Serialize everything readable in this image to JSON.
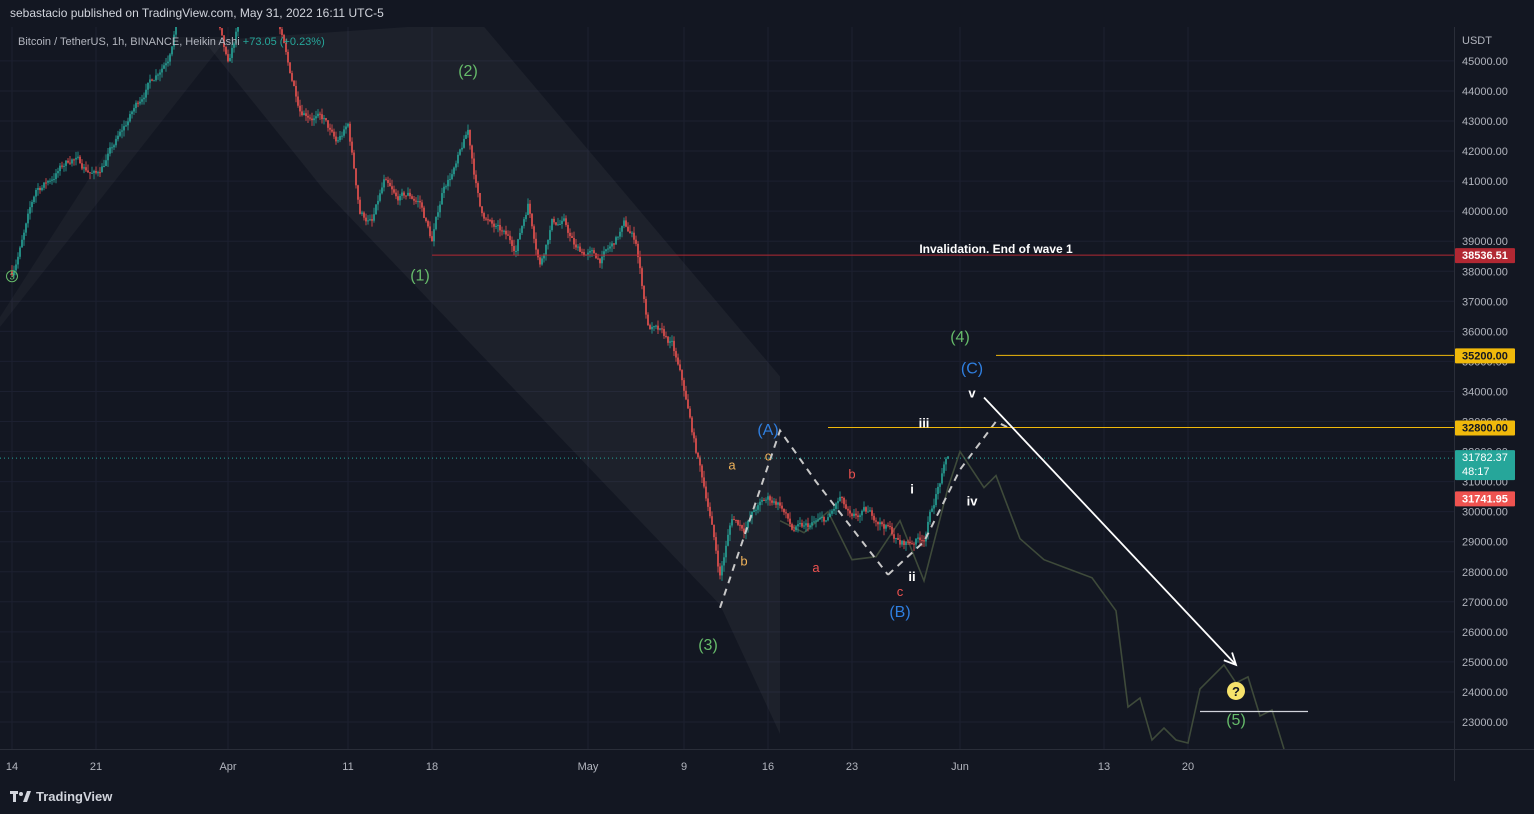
{
  "header": {
    "publisher_text": "sebastacio published on TradingView.com, May 31, 2022 16:11 UTC-5"
  },
  "symbol": {
    "name": "Bitcoin / TetherUS, 1h, BINANCE, Heikin Ashi",
    "change": "+73.05 (+0.23%)"
  },
  "footer": {
    "logo_text": "TradingView"
  },
  "colors": {
    "background": "#131722",
    "up": "#26a69a",
    "down": "#ef5350",
    "green_label": "#66bb6a",
    "blue_label": "#2f7fe0",
    "orange_label": "#f0b35a",
    "red_label": "#ef5350",
    "yellow_line": "#f0b90b",
    "red_line": "#b22833"
  },
  "chart_data": {
    "type": "candlestick",
    "price_axis_unit": "USDT",
    "y_ticks": [
      23000,
      24000,
      25000,
      26000,
      27000,
      28000,
      29000,
      30000,
      31000,
      32000,
      33000,
      34000,
      35000,
      36000,
      37000,
      38000,
      39000,
      40000,
      41000,
      42000,
      43000,
      44000,
      45000
    ],
    "ylim": [
      22250,
      46000
    ],
    "x_axis_labels": [
      {
        "label": "14",
        "date": "2022-03-14"
      },
      {
        "label": "21",
        "date": "2022-03-21"
      },
      {
        "label": "Apr",
        "date": "2022-04-01"
      },
      {
        "label": "11",
        "date": "2022-04-11"
      },
      {
        "label": "18",
        "date": "2022-04-18"
      },
      {
        "label": "May",
        "date": "2022-05-01"
      },
      {
        "label": "9",
        "date": "2022-05-09"
      },
      {
        "label": "16",
        "date": "2022-05-16"
      },
      {
        "label": "23",
        "date": "2022-05-23"
      },
      {
        "label": "Jun",
        "date": "2022-06-01"
      },
      {
        "label": "13",
        "date": "2022-06-13"
      },
      {
        "label": "20",
        "date": "2022-06-20"
      }
    ],
    "price_path": [
      [
        "2022-03-14",
        38000
      ],
      [
        "2022-03-15",
        39200
      ],
      [
        "2022-03-16",
        40700
      ],
      [
        "2022-03-17",
        41000
      ],
      [
        "2022-03-19",
        41800
      ],
      [
        "2022-03-21",
        41200
      ],
      [
        "2022-03-23",
        42500
      ],
      [
        "2022-03-25",
        44000
      ],
      [
        "2022-03-27",
        45200
      ],
      [
        "2022-03-28",
        46900
      ],
      [
        "2022-03-30",
        47300
      ],
      [
        "2022-03-31",
        46500
      ],
      [
        "2022-04-01",
        44700
      ],
      [
        "2022-04-02",
        46400
      ],
      [
        "2022-04-04",
        46300
      ],
      [
        "2022-04-05",
        46700
      ],
      [
        "2022-04-06",
        44800
      ],
      [
        "2022-04-07",
        43500
      ],
      [
        "2022-04-09",
        43000
      ],
      [
        "2022-04-10",
        42200
      ],
      [
        "2022-04-11",
        42800
      ],
      [
        "2022-04-12",
        40000
      ],
      [
        "2022-04-13",
        39600
      ],
      [
        "2022-04-14",
        40900
      ],
      [
        "2022-04-15",
        40300
      ],
      [
        "2022-04-16",
        40500
      ],
      [
        "2022-04-17",
        40300
      ],
      [
        "2022-04-18",
        39000
      ],
      [
        "2022-04-19",
        40900
      ],
      [
        "2022-04-20",
        41500
      ],
      [
        "2022-04-21",
        42600
      ],
      [
        "2022-04-22",
        40100
      ],
      [
        "2022-04-23",
        39500
      ],
      [
        "2022-04-25",
        38800
      ],
      [
        "2022-04-26",
        40300
      ],
      [
        "2022-04-27",
        38300
      ],
      [
        "2022-04-28",
        39700
      ],
      [
        "2022-04-29",
        39600
      ],
      [
        "2022-04-30",
        38700
      ],
      [
        "2022-05-01",
        38600
      ],
      [
        "2022-05-02",
        38400
      ],
      [
        "2022-05-03",
        38800
      ],
      [
        "2022-05-04",
        39500
      ],
      [
        "2022-05-05",
        39000
      ],
      [
        "2022-05-06",
        36200
      ],
      [
        "2022-05-07",
        35900
      ],
      [
        "2022-05-08",
        35500
      ],
      [
        "2022-05-09",
        34000
      ],
      [
        "2022-05-10",
        32000
      ],
      [
        "2022-05-11",
        30300
      ],
      [
        "2022-05-12",
        27900
      ],
      [
        "2022-05-13",
        29800
      ],
      [
        "2022-05-14",
        29500
      ],
      [
        "2022-05-15",
        30100
      ],
      [
        "2022-05-16",
        30400
      ],
      [
        "2022-05-17",
        30300
      ],
      [
        "2022-05-18",
        29400
      ],
      [
        "2022-05-19",
        29400
      ],
      [
        "2022-05-20",
        29600
      ],
      [
        "2022-05-21",
        29700
      ],
      [
        "2022-05-22",
        30400
      ],
      [
        "2022-05-23",
        29600
      ],
      [
        "2022-05-24",
        29900
      ],
      [
        "2022-05-25",
        29800
      ],
      [
        "2022-05-26",
        29500
      ],
      [
        "2022-05-27",
        28900
      ],
      [
        "2022-05-28",
        29000
      ],
      [
        "2022-05-29",
        29200
      ],
      [
        "2022-05-30",
        30600
      ],
      [
        "2022-05-31",
        31782
      ]
    ],
    "projection_path": [
      [
        "2022-05-17",
        29700
      ],
      [
        "2022-05-19",
        29300
      ],
      [
        "2022-05-21",
        30000
      ],
      [
        "2022-05-23",
        28400
      ],
      [
        "2022-05-25",
        28500
      ],
      [
        "2022-05-27",
        29700
      ],
      [
        "2022-05-29",
        27700
      ],
      [
        "2022-05-31",
        30800
      ],
      [
        "2022-06-01",
        32000
      ],
      [
        "2022-06-03",
        30800
      ],
      [
        "2022-06-04",
        31200
      ],
      [
        "2022-06-06",
        29100
      ],
      [
        "2022-06-08",
        28400
      ],
      [
        "2022-06-10",
        28100
      ],
      [
        "2022-06-12",
        27800
      ],
      [
        "2022-06-14",
        26700
      ],
      [
        "2022-06-15",
        23500
      ],
      [
        "2022-06-16",
        23800
      ],
      [
        "2022-06-17",
        22400
      ],
      [
        "2022-06-18",
        22800
      ],
      [
        "2022-06-19",
        22400
      ],
      [
        "2022-06-20",
        22300
      ],
      [
        "2022-06-21",
        24100
      ],
      [
        "2022-06-22",
        24500
      ],
      [
        "2022-06-23",
        24900
      ],
      [
        "2022-06-24",
        24300
      ],
      [
        "2022-06-25",
        24500
      ],
      [
        "2022-06-26",
        23200
      ],
      [
        "2022-06-27",
        23400
      ],
      [
        "2022-06-28",
        22100
      ]
    ],
    "horizontal_levels": [
      {
        "price": 38536.51,
        "label": "38536.51",
        "note": "Invalidation. End of wave 1",
        "style": "red"
      },
      {
        "price": 35200,
        "label": "35200.00",
        "style": "yellow"
      },
      {
        "price": 32800,
        "label": "32800.00",
        "style": "yellow"
      },
      {
        "price": 23350,
        "style": "white"
      }
    ],
    "price_badges": [
      {
        "price": 31782.37,
        "label": "31782.37",
        "sublabel": "48:17",
        "color": "#26a69a"
      },
      {
        "price": 31741.95,
        "label": "31741.95",
        "color": "#ef5350"
      }
    ],
    "wave_labels": [
      {
        "text": "(1)",
        "date": "2022-04-17",
        "price": 37700,
        "color": "green"
      },
      {
        "text": "(2)",
        "date": "2022-04-21",
        "price": 44500,
        "color": "green"
      },
      {
        "text": "(3)",
        "date": "2022-05-11",
        "price": 25400,
        "color": "green"
      },
      {
        "text": "(4)",
        "date": "2022-06-01",
        "price": 35650,
        "color": "green"
      },
      {
        "text": "(5)",
        "date": "2022-06-24",
        "price": 22900,
        "color": "green"
      },
      {
        "text": "(A)",
        "date": "2022-05-16",
        "price": 32550,
        "color": "blue"
      },
      {
        "text": "(B)",
        "date": "2022-05-27",
        "price": 26500,
        "color": "blue"
      },
      {
        "text": "(C)",
        "date": "2022-06-02",
        "price": 34600,
        "color": "blue"
      },
      {
        "text": "a",
        "date": "2022-05-13",
        "price": 31400,
        "color": "orange"
      },
      {
        "text": "b",
        "date": "2022-05-14",
        "price": 28200,
        "color": "orange"
      },
      {
        "text": "c",
        "date": "2022-05-16",
        "price": 31700,
        "color": "orange"
      },
      {
        "text": "a",
        "date": "2022-05-20",
        "price": 28000,
        "color": "red"
      },
      {
        "text": "b",
        "date": "2022-05-23",
        "price": 31100,
        "color": "red"
      },
      {
        "text": "c",
        "date": "2022-05-27",
        "price": 27200,
        "color": "red"
      },
      {
        "text": "i",
        "date": "2022-05-28",
        "price": 30600,
        "color": "white"
      },
      {
        "text": "ii",
        "date": "2022-05-28",
        "price": 27700,
        "color": "white"
      },
      {
        "text": "iii",
        "date": "2022-05-29",
        "price": 32800,
        "color": "white"
      },
      {
        "text": "iv",
        "date": "2022-06-02",
        "price": 30200,
        "color": "white"
      },
      {
        "text": "v",
        "date": "2022-06-02",
        "price": 33800,
        "color": "white"
      }
    ],
    "edge_marker": {
      "text": "3",
      "price": 37700
    },
    "arrow": {
      "from": [
        "2022-06-03",
        33800
      ],
      "to": [
        "2022-06-24",
        24900
      ]
    },
    "question_marker": {
      "date": "2022-06-24",
      "price": 24000
    }
  }
}
